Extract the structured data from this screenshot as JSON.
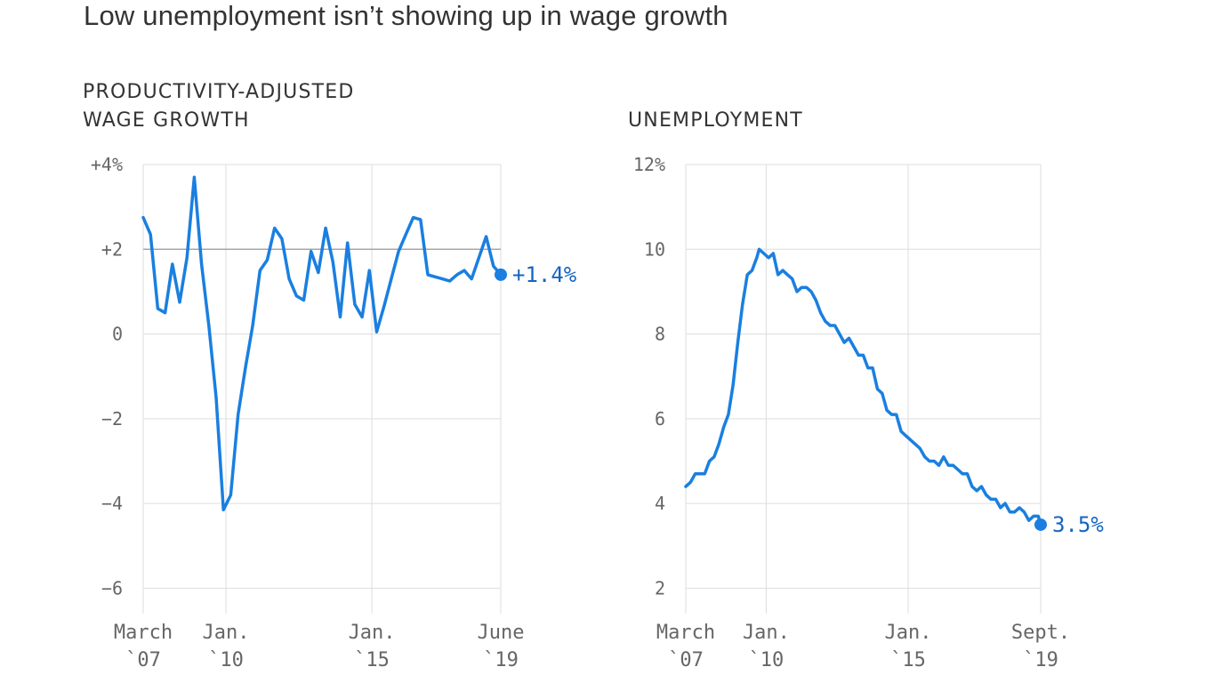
{
  "title": "Low unemployment isn’t showing up in wage growth",
  "colors": {
    "line": "#1a7fe0",
    "label": "#1565c0",
    "grid": "#dddddd",
    "reference": "#999999"
  },
  "chart_data": [
    {
      "type": "line",
      "title_lines": [
        "PRODUCTIVITY-ADJUSTED",
        "WAGE GROWTH"
      ],
      "y_ticks": [
        {
          "value": 4,
          "label": "+4%"
        },
        {
          "value": 2,
          "label": "+2"
        },
        {
          "value": 0,
          "label": "0"
        },
        {
          "value": -2,
          "label": "−2"
        },
        {
          "value": -4,
          "label": "−4"
        },
        {
          "value": -6,
          "label": "−6"
        }
      ],
      "ylim": [
        -6.6,
        4
      ],
      "x_ticks": [
        {
          "date": "2007-03",
          "label": [
            "March",
            "`07"
          ]
        },
        {
          "date": "2010-01",
          "label": [
            "Jan.",
            "`10"
          ]
        },
        {
          "date": "2015-01",
          "label": [
            "Jan.",
            "`15"
          ]
        },
        {
          "date": "2019-06",
          "label": [
            "June",
            "`19"
          ]
        }
      ],
      "xlim": [
        "2007-03",
        "2019-06"
      ],
      "reference_line": 2,
      "end_label": "+1.4%",
      "series": [
        {
          "x": [
            "2007-03",
            "2007-06",
            "2007-09",
            "2007-12",
            "2008-03",
            "2008-06",
            "2008-09",
            "2008-12",
            "2009-03",
            "2009-06",
            "2009-09",
            "2009-12",
            "2010-03",
            "2010-06",
            "2010-09",
            "2010-12",
            "2011-03",
            "2011-06",
            "2011-09",
            "2011-12",
            "2012-03",
            "2012-06",
            "2012-09",
            "2012-12",
            "2013-03",
            "2013-06",
            "2013-09",
            "2013-12",
            "2014-03",
            "2014-06",
            "2014-09",
            "2014-12",
            "2015-03",
            "2015-06",
            "2015-09",
            "2015-12",
            "2016-03",
            "2016-06",
            "2016-09",
            "2016-12",
            "2017-03",
            "2017-06",
            "2017-09",
            "2017-12",
            "2018-03",
            "2018-06",
            "2018-09",
            "2018-12",
            "2019-03",
            "2019-06"
          ],
          "y": [
            2.75,
            2.35,
            0.6,
            0.5,
            1.65,
            0.75,
            1.8,
            3.7,
            1.65,
            0.2,
            -1.5,
            -4.15,
            -3.8,
            -1.9,
            -0.8,
            0.2,
            1.5,
            1.75,
            2.5,
            2.25,
            1.3,
            0.9,
            0.8,
            1.95,
            1.45,
            2.5,
            1.7,
            0.4,
            2.15,
            0.7,
            0.4,
            1.5,
            0.05,
            0.65,
            1.3,
            1.95,
            2.35,
            2.75,
            2.7,
            1.4,
            1.35,
            1.3,
            1.25,
            1.4,
            1.5,
            1.3,
            1.8,
            2.3,
            1.6,
            1.4
          ]
        }
      ]
    },
    {
      "type": "line",
      "title_lines": [
        "UNEMPLOYMENT"
      ],
      "y_ticks": [
        {
          "value": 12,
          "label": "12%"
        },
        {
          "value": 10,
          "label": "10"
        },
        {
          "value": 8,
          "label": "8"
        },
        {
          "value": 6,
          "label": "6"
        },
        {
          "value": 4,
          "label": "4"
        },
        {
          "value": 2,
          "label": "2"
        }
      ],
      "ylim": [
        1.4,
        12
      ],
      "x_ticks": [
        {
          "date": "2007-03",
          "label": [
            "March",
            "`07"
          ]
        },
        {
          "date": "2010-01",
          "label": [
            "Jan.",
            "`10"
          ]
        },
        {
          "date": "2015-01",
          "label": [
            "Jan.",
            "`15"
          ]
        },
        {
          "date": "2019-09",
          "label": [
            "Sept.",
            "`19"
          ]
        }
      ],
      "xlim": [
        "2007-03",
        "2019-09"
      ],
      "end_label": "3.5%",
      "series": [
        {
          "x": [
            "2007-03",
            "2007-05",
            "2007-07",
            "2007-09",
            "2007-11",
            "2008-01",
            "2008-03",
            "2008-05",
            "2008-07",
            "2008-09",
            "2008-11",
            "2009-01",
            "2009-03",
            "2009-05",
            "2009-07",
            "2009-09",
            "2009-10",
            "2009-12",
            "2010-02",
            "2010-04",
            "2010-06",
            "2010-08",
            "2010-10",
            "2010-12",
            "2011-02",
            "2011-04",
            "2011-06",
            "2011-08",
            "2011-10",
            "2011-12",
            "2012-02",
            "2012-04",
            "2012-06",
            "2012-08",
            "2012-10",
            "2012-12",
            "2013-02",
            "2013-04",
            "2013-06",
            "2013-08",
            "2013-10",
            "2013-12",
            "2014-02",
            "2014-04",
            "2014-06",
            "2014-08",
            "2014-10",
            "2014-12",
            "2015-02",
            "2015-04",
            "2015-06",
            "2015-08",
            "2015-10",
            "2015-12",
            "2016-02",
            "2016-04",
            "2016-06",
            "2016-08",
            "2016-10",
            "2016-12",
            "2017-02",
            "2017-04",
            "2017-06",
            "2017-08",
            "2017-10",
            "2017-12",
            "2018-02",
            "2018-04",
            "2018-06",
            "2018-08",
            "2018-10",
            "2018-12",
            "2019-02",
            "2019-04",
            "2019-06",
            "2019-08",
            "2019-09"
          ],
          "y": [
            4.4,
            4.5,
            4.7,
            4.7,
            4.7,
            5.0,
            5.1,
            5.4,
            5.8,
            6.1,
            6.8,
            7.8,
            8.7,
            9.4,
            9.5,
            9.8,
            10.0,
            9.9,
            9.8,
            9.9,
            9.4,
            9.5,
            9.4,
            9.3,
            9.0,
            9.1,
            9.1,
            9.0,
            8.8,
            8.5,
            8.3,
            8.2,
            8.2,
            8.0,
            7.8,
            7.9,
            7.7,
            7.5,
            7.5,
            7.2,
            7.2,
            6.7,
            6.6,
            6.2,
            6.1,
            6.1,
            5.7,
            5.6,
            5.5,
            5.4,
            5.3,
            5.1,
            5.0,
            5.0,
            4.9,
            5.1,
            4.9,
            4.9,
            4.8,
            4.7,
            4.7,
            4.4,
            4.3,
            4.4,
            4.2,
            4.1,
            4.1,
            3.9,
            4.0,
            3.8,
            3.8,
            3.9,
            3.8,
            3.6,
            3.7,
            3.7,
            3.5
          ]
        }
      ]
    }
  ]
}
